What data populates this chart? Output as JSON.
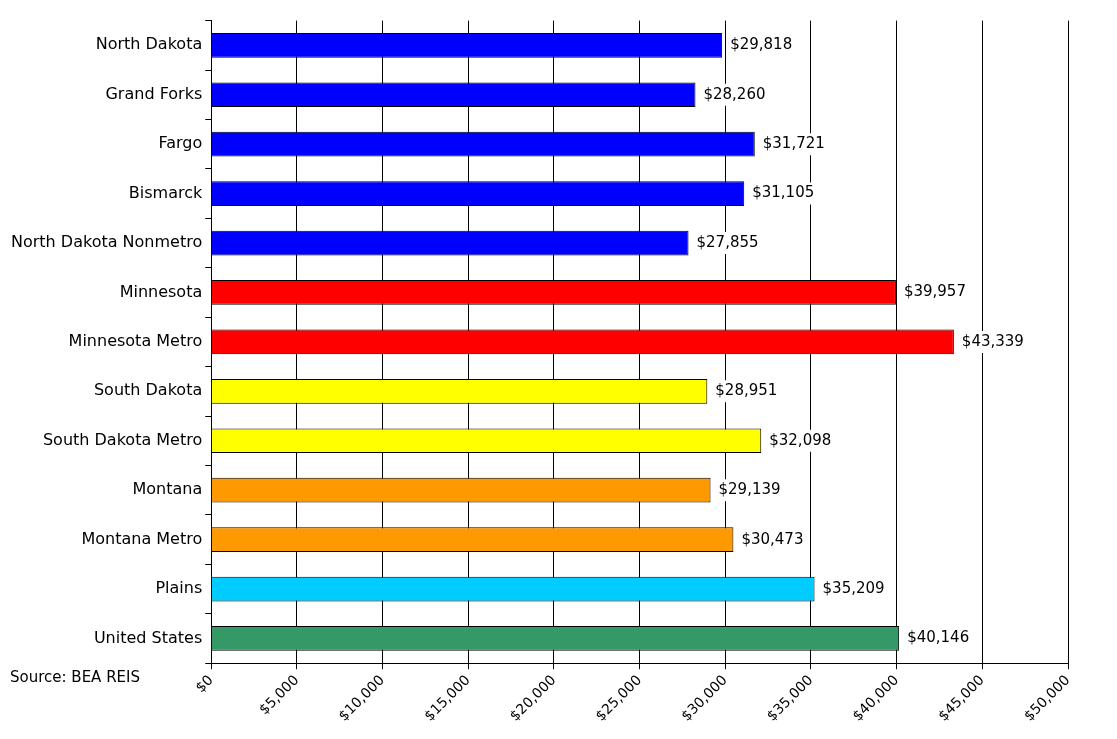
{
  "chart_data": {
    "type": "bar",
    "orientation": "horizontal",
    "categories": [
      "North Dakota",
      "Grand Forks",
      "Fargo",
      "Bismarck",
      "North Dakota Nonmetro",
      "Minnesota",
      "Minnesota Metro",
      "South Dakota",
      "South Dakota Metro",
      "Montana",
      "Montana Metro",
      "Plains",
      "United States"
    ],
    "values": [
      29818,
      28260,
      31721,
      31105,
      27855,
      39957,
      43339,
      28951,
      32098,
      29139,
      30473,
      35209,
      40146
    ],
    "colors": [
      "#0000ff",
      "#0000ff",
      "#0000ff",
      "#0000ff",
      "#0000ff",
      "#ff0000",
      "#ff0000",
      "#ffff00",
      "#ffff00",
      "#ff9900",
      "#ff9900",
      "#00ccff",
      "#339966"
    ],
    "xlim": [
      0,
      50000
    ],
    "xticks": [
      {
        "value": 0,
        "label": "$0"
      },
      {
        "value": 5000,
        "label": "$5,000"
      },
      {
        "value": 10000,
        "label": "$10,000"
      },
      {
        "value": 15000,
        "label": "$15,000"
      },
      {
        "value": 20000,
        "label": "$20,000"
      },
      {
        "value": 25000,
        "label": "$25,000"
      },
      {
        "value": 30000,
        "label": "$30,000"
      },
      {
        "value": 35000,
        "label": "$35,000"
      },
      {
        "value": 40000,
        "label": "$40,000"
      },
      {
        "value": 45000,
        "label": "$45,000"
      },
      {
        "value": 50000,
        "label": "$50,000"
      }
    ],
    "value_labels": [
      "$29,818",
      "$28,260",
      "$31,721",
      "$31,105",
      "$27,855",
      "$39,957",
      "$43,339",
      "$28,951",
      "$32,098",
      "$29,139",
      "$30,473",
      "$35,209",
      "$40,146"
    ],
    "grid": "x",
    "legend": false,
    "annotations": [
      "Source: BEA REIS"
    ]
  }
}
